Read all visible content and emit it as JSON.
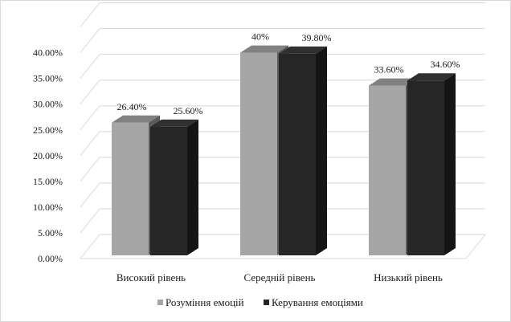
{
  "chart_data": {
    "type": "bar",
    "style": "3d-clustered-column",
    "categories": [
      "Високий рівень",
      "Середній рівень",
      "Низький рівень"
    ],
    "series": [
      {
        "name": "Розуміння емоцій",
        "values": [
          26.4,
          40.0,
          33.6
        ],
        "labels": [
          "26.40%",
          "40%",
          "33.60%"
        ],
        "color": "#a6a6a6"
      },
      {
        "name": "Керування емоціями",
        "values": [
          25.6,
          39.8,
          34.6
        ],
        "labels": [
          "25.60%",
          "39.80%",
          "34.60%"
        ],
        "color": "#262626"
      }
    ],
    "y_ticks": [
      0,
      5,
      10,
      15,
      20,
      25,
      30,
      35,
      40
    ],
    "y_tick_labels": [
      "0.00%",
      "5.00%",
      "10.00%",
      "15.00%",
      "20.00%",
      "25.00%",
      "30.00%",
      "35.00%",
      "40.00%"
    ],
    "ylim": [
      0,
      45
    ],
    "grid": true,
    "legend_position": "bottom"
  }
}
